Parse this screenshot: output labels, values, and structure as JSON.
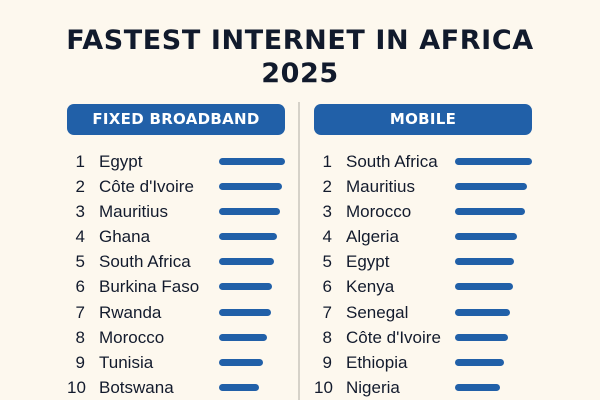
{
  "title": {
    "line1": "FASTEST INTERNET IN AFRICA",
    "line2": "2025"
  },
  "colors": {
    "background": "#fdf8ee",
    "accent": "#2160a8",
    "title": "#111a2c",
    "divider": "#d6d2c9"
  },
  "fixed": {
    "header": "FIXED BROADBAND",
    "rows": [
      {
        "rank": "1",
        "country": "Egypt",
        "bar": 66
      },
      {
        "rank": "2",
        "country": "Côte d'Ivoire",
        "bar": 63
      },
      {
        "rank": "3",
        "country": "Mauritius",
        "bar": 61
      },
      {
        "rank": "4",
        "country": "Ghana",
        "bar": 58
      },
      {
        "rank": "5",
        "country": "South Africa",
        "bar": 55
      },
      {
        "rank": "6",
        "country": "Burkina Faso",
        "bar": 53
      },
      {
        "rank": "7",
        "country": "Rwanda",
        "bar": 52
      },
      {
        "rank": "8",
        "country": "Morocco",
        "bar": 48
      },
      {
        "rank": "9",
        "country": "Tunisia",
        "bar": 44
      },
      {
        "rank": "10",
        "country": "Botswana",
        "bar": 40
      }
    ]
  },
  "mobile": {
    "header": "MOBILE",
    "rows": [
      {
        "rank": "1",
        "country": "South Africa",
        "bar": 77
      },
      {
        "rank": "2",
        "country": "Mauritius",
        "bar": 72
      },
      {
        "rank": "3",
        "country": "Morocco",
        "bar": 70
      },
      {
        "rank": "4",
        "country": "Algeria",
        "bar": 62
      },
      {
        "rank": "5",
        "country": "Egypt",
        "bar": 59
      },
      {
        "rank": "6",
        "country": "Kenya",
        "bar": 58
      },
      {
        "rank": "7",
        "country": "Senegal",
        "bar": 55
      },
      {
        "rank": "8",
        "country": "Côte d'Ivoire",
        "bar": 53
      },
      {
        "rank": "9",
        "country": "Ethiopia",
        "bar": 49
      },
      {
        "rank": "10",
        "country": "Nigeria",
        "bar": 45
      }
    ]
  },
  "chart_data": [
    {
      "type": "bar",
      "orientation": "horizontal",
      "title": "FASTEST INTERNET IN AFRICA 2025",
      "subtitle": "FIXED BROADBAND",
      "categories": [
        "Egypt",
        "Côte d'Ivoire",
        "Mauritius",
        "Ghana",
        "South Africa",
        "Burkina Faso",
        "Rwanda",
        "Morocco",
        "Tunisia",
        "Botswana"
      ],
      "ranks": [
        1,
        2,
        3,
        4,
        5,
        6,
        7,
        8,
        9,
        10
      ],
      "values": [
        66,
        63,
        61,
        58,
        55,
        53,
        52,
        48,
        44,
        40
      ],
      "value_unit": "relative bar length (px), no axis shown",
      "xlabel": "",
      "ylabel": "",
      "grid": false,
      "legend": "none"
    },
    {
      "type": "bar",
      "orientation": "horizontal",
      "title": "FASTEST INTERNET IN AFRICA 2025",
      "subtitle": "MOBILE",
      "categories": [
        "South Africa",
        "Mauritius",
        "Morocco",
        "Algeria",
        "Egypt",
        "Kenya",
        "Senegal",
        "Côte d'Ivoire",
        "Ethiopia",
        "Nigeria"
      ],
      "ranks": [
        1,
        2,
        3,
        4,
        5,
        6,
        7,
        8,
        9,
        10
      ],
      "values": [
        77,
        72,
        70,
        62,
        59,
        58,
        55,
        53,
        49,
        45
      ],
      "value_unit": "relative bar length (px), no axis shown",
      "xlabel": "",
      "ylabel": "",
      "grid": false,
      "legend": "none"
    }
  ]
}
